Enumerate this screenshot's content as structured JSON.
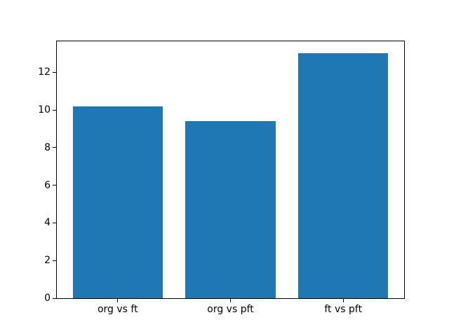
{
  "chart_data": {
    "type": "bar",
    "title": "",
    "xlabel": "",
    "ylabel": "",
    "categories": [
      "org vs ft",
      "org vs pft",
      "ft vs pft"
    ],
    "values": [
      10.2,
      9.4,
      13.0
    ],
    "yticks": [
      0,
      2,
      4,
      6,
      8,
      10,
      12
    ],
    "ytick_labels": [
      "0",
      "2",
      "4",
      "6",
      "8",
      "10",
      "12"
    ],
    "ylim": [
      0,
      13.65
    ],
    "xlim": [
      -0.54,
      2.54
    ],
    "bar_width": 0.8,
    "bar_color": "#1f77b4",
    "axis_color": "#000000",
    "background_color": "#ffffff",
    "grid": false,
    "legend": null
  }
}
